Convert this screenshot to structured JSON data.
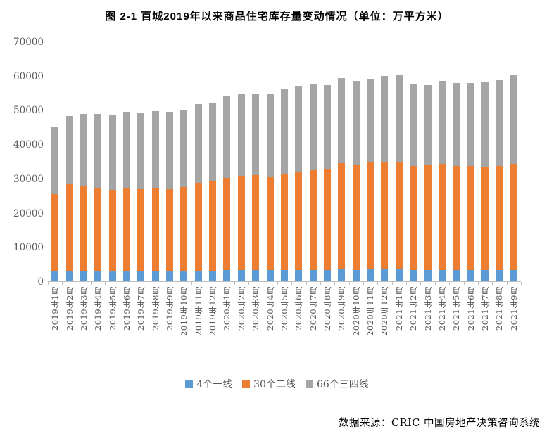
{
  "source_note": "数据来源：CRIC 中国房地产决策咨询系统",
  "chart_data": {
    "type": "bar",
    "stacked": true,
    "title": "图 2-1 百城2019年以来商品住宅库存量变动情况（单位：万平方米）",
    "unit": "万平方米",
    "grid": false,
    "legend_position": "bottom",
    "ylim": [
      0,
      70000
    ],
    "ytick_interval": 10000,
    "yticks": [
      "70000",
      "60000",
      "50000",
      "40000",
      "30000",
      "20000",
      "10000",
      "0"
    ],
    "categories": [
      "2019年1月",
      "2019年2月",
      "2019年3月",
      "2019年4月",
      "2019年5月",
      "2019年6月",
      "2019年7月",
      "2019年8月",
      "2019年9月",
      "2019年10月",
      "2019年11月",
      "2019年12月",
      "2020年1月",
      "2020年2月",
      "2020年3月",
      "2020年4月",
      "2020年5月",
      "2020年6月",
      "2020年7月",
      "2020年8月",
      "2020年9月",
      "2020年10月",
      "2020年11月",
      "2020年12月",
      "2021年1月",
      "2021年2月",
      "2021年3月",
      "2021年4月",
      "2021年5月",
      "2021年6月",
      "2021年7月",
      "2021年8月",
      "2021年9月"
    ],
    "series": [
      {
        "name": "4个一线",
        "color": "#5B9BD5",
        "values": [
          2900,
          3000,
          3000,
          3000,
          3000,
          3000,
          3000,
          3000,
          3000,
          3000,
          3100,
          3100,
          3200,
          3200,
          3200,
          3200,
          3300,
          3300,
          3300,
          3400,
          3500,
          3400,
          3500,
          3600,
          3500,
          3400,
          3400,
          3400,
          3400,
          3400,
          3300,
          3300,
          3300
        ]
      },
      {
        "name": "30个二线",
        "color": "#ED7D31",
        "values": [
          22700,
          25400,
          24700,
          24300,
          23700,
          24200,
          23900,
          24400,
          24000,
          24600,
          25800,
          26400,
          27000,
          27700,
          27800,
          27500,
          28200,
          28900,
          29300,
          29400,
          31000,
          30700,
          31200,
          31500,
          31300,
          30400,
          30500,
          30900,
          30400,
          30300,
          30200,
          30500,
          31000
        ]
      },
      {
        "name": "66个三四线",
        "color": "#A5A5A5",
        "values": [
          19700,
          19900,
          21300,
          21700,
          22200,
          22500,
          22500,
          22500,
          22700,
          22700,
          22900,
          22800,
          23900,
          24000,
          23800,
          24200,
          24800,
          24900,
          25000,
          24600,
          25000,
          24500,
          24600,
          25000,
          25800,
          24100,
          23600,
          24300,
          24200,
          24400,
          24800,
          25000,
          26200
        ]
      }
    ]
  }
}
